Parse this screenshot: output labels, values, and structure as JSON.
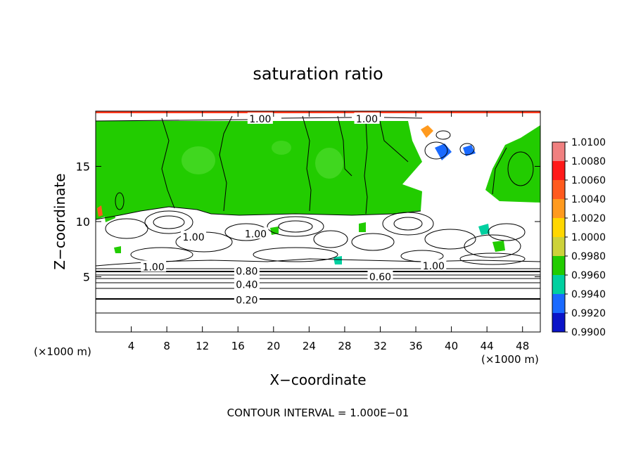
{
  "chart_data": {
    "type": "heatmap",
    "title": "saturation ratio",
    "xlabel": "X−coordinate",
    "ylabel": "Z−coordinate",
    "x_unit_left": "(×1000 m)",
    "x_unit_right": "(×1000 m)",
    "xlim": [
      0,
      50
    ],
    "ylim": [
      0,
      20
    ],
    "x_ticks": [
      4,
      8,
      12,
      16,
      20,
      24,
      28,
      32,
      36,
      40,
      44,
      48
    ],
    "y_ticks": [
      5,
      10,
      15
    ],
    "colorbar": {
      "levels": [
        "1.0100",
        "1.0080",
        "1.0060",
        "1.0040",
        "1.0020",
        "1.0000",
        "0.9980",
        "0.9960",
        "0.9940",
        "0.9920",
        "0.9900"
      ],
      "colors": [
        "#f08080",
        "#ff1a1a",
        "#ff5a1e",
        "#ff9a1e",
        "#ffd700",
        "#cdd23a",
        "#22cc00",
        "#00d0a0",
        "#1a6aff",
        "#0a14c8",
        "#5a0a8a"
      ]
    },
    "contour_labels": [
      {
        "text": "1.00",
        "x": 18.5,
        "z": 19.3
      },
      {
        "text": "1.00",
        "x": 30.5,
        "z": 19.3
      },
      {
        "text": "1.00",
        "x": 11.0,
        "z": 8.6
      },
      {
        "text": "1.00",
        "x": 18.0,
        "z": 8.9
      },
      {
        "text": "1.00",
        "x": 6.5,
        "z": 5.9
      },
      {
        "text": "1.00",
        "x": 38.0,
        "z": 6.0
      },
      {
        "text": "0.80",
        "x": 17.0,
        "z": 5.5
      },
      {
        "text": "0.60",
        "x": 32.0,
        "z": 5.0
      },
      {
        "text": "0.40",
        "x": 17.0,
        "z": 4.3
      },
      {
        "text": "0.20",
        "x": 17.0,
        "z": 2.9
      }
    ],
    "contour_interval_text": "CONTOUR INTERVAL = 1.000E−01"
  }
}
